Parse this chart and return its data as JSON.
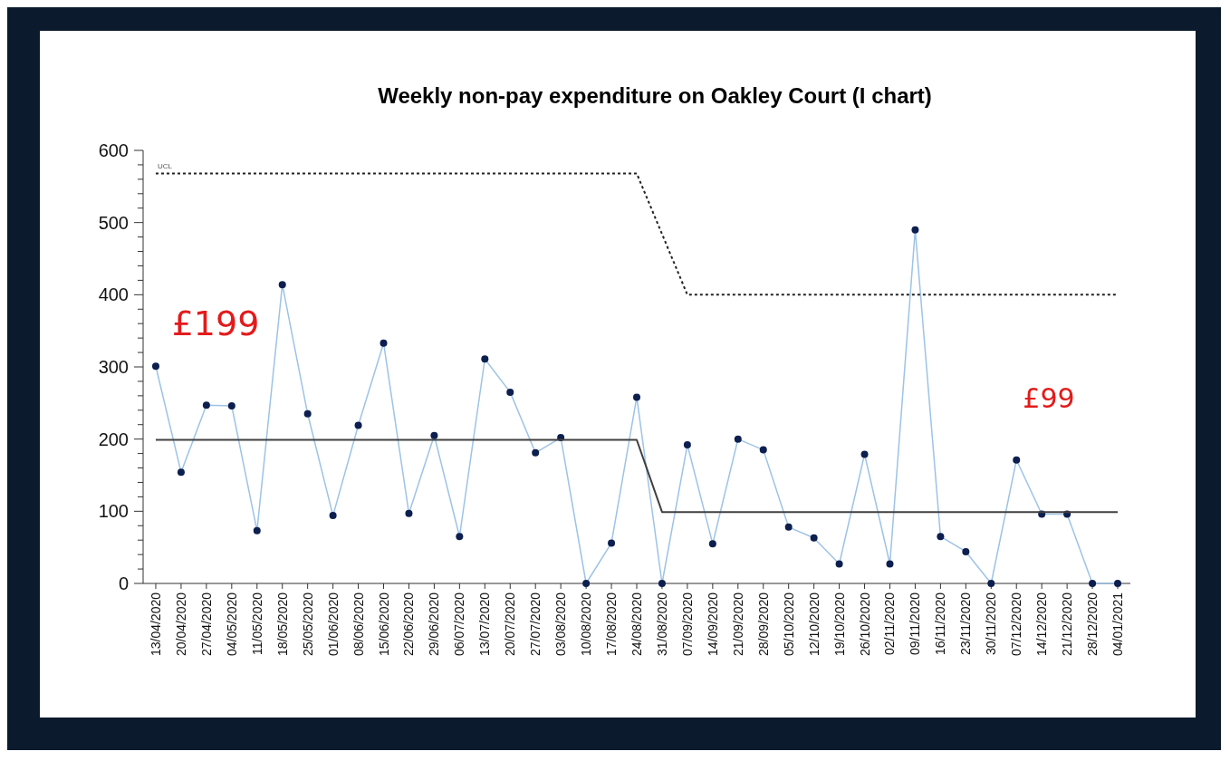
{
  "chart_data": {
    "type": "line",
    "title": "Weekly non-pay expenditure on Oakley Court (I chart)",
    "categories": [
      "13/04/2020",
      "20/04/2020",
      "27/04/2020",
      "04/05/2020",
      "11/05/2020",
      "18/05/2020",
      "25/05/2020",
      "01/06/2020",
      "08/06/2020",
      "15/06/2020",
      "22/06/2020",
      "29/06/2020",
      "06/07/2020",
      "13/07/2020",
      "20/07/2020",
      "27/07/2020",
      "03/08/2020",
      "10/08/2020",
      "17/08/2020",
      "24/08/2020",
      "31/08/2020",
      "07/09/2020",
      "14/09/2020",
      "21/09/2020",
      "28/09/2020",
      "05/10/2020",
      "12/10/2020",
      "19/10/2020",
      "26/10/2020",
      "02/11/2020",
      "09/11/2020",
      "16/11/2020",
      "23/11/2020",
      "30/11/2020",
      "07/12/2020",
      "14/12/2020",
      "21/12/2020",
      "28/12/2020",
      "04/01/2021"
    ],
    "series": [
      {
        "color": "#9dc3e6",
        "colors": [
          "#0d1f4f",
          "#0d1f4f",
          "#0d1f4f",
          "#0d1f4f",
          "#0d1f4f",
          "#0d1f4f",
          "#0d1f4f",
          "#0d1f4f",
          "#0d1f4f",
          "#0d1f4f",
          "#0d1f4f",
          "#0d1f4f",
          "#0d1f4f",
          "#0d1f4f",
          "#0d1f4f",
          "#0d1f4f",
          "#0d1f4f",
          "#0d1f4f",
          "#0d1f4f",
          "#0d1f4f",
          "#0d1f4f",
          "#0d1f4f",
          "#0d1f4f",
          "#0d1f4f",
          "#0d1f4f",
          "#0d1f4f",
          "#0d1f4f",
          "#0d1f4f",
          "#0d1f4f",
          "#0d1f4f",
          "#0d1f4f",
          "#0d1f4f",
          "#0d1f4f",
          "#0d1f4f",
          "#0d1f4f",
          "#0d1f4f",
          "#0d1f4f",
          "#0d1f4f",
          "#0d1f4f"
        ],
        "marker": "circle",
        "line_style": "solid",
        "values": [
          301,
          154,
          247,
          246,
          73,
          414,
          235,
          94,
          219,
          333,
          97,
          205,
          65,
          311,
          265,
          181,
          202,
          0,
          56,
          258,
          0,
          192,
          55,
          200,
          185,
          78,
          63,
          27,
          179,
          27,
          490,
          65,
          44,
          0,
          171,
          96,
          96,
          0,
          0
        ]
      },
      {
        "color": "#404040",
        "marker": "none",
        "line_style": "solid",
        "values": [
          199,
          199,
          199,
          199,
          199,
          199,
          199,
          199,
          199,
          199,
          199,
          199,
          199,
          199,
          199,
          199,
          199,
          199,
          199,
          199,
          99,
          99,
          99,
          99,
          99,
          99,
          99,
          99,
          99,
          99,
          99,
          99,
          99,
          99,
          99,
          99,
          99,
          99,
          99
        ]
      },
      {
        "name": "UCL",
        "color": "#222222",
        "marker": "none",
        "line_style": "dotted",
        "values": [
          568,
          568,
          568,
          568,
          568,
          568,
          568,
          568,
          568,
          568,
          568,
          568,
          568,
          568,
          568,
          568,
          568,
          568,
          568,
          568,
          484,
          400,
          400,
          400,
          400,
          400,
          400,
          400,
          400,
          400,
          400,
          400,
          400,
          400,
          400,
          400,
          400,
          400,
          400
        ]
      }
    ],
    "ylim": [
      0,
      600
    ],
    "yticks": [
      0,
      {
        "value": 20,
        "label": null
      },
      {
        "value": 40,
        "label": null
      },
      {
        "value": 60,
        "label": null
      },
      {
        "value": 80,
        "label": null
      },
      100,
      {
        "value": 120,
        "label": null
      },
      {
        "value": 140,
        "label": null
      },
      {
        "value": 160,
        "label": null
      },
      {
        "value": 180,
        "label": null
      },
      200,
      {
        "value": 220,
        "label": null
      },
      {
        "value": 240,
        "label": null
      },
      {
        "value": 260,
        "label": null
      },
      {
        "value": 280,
        "label": null
      },
      300,
      {
        "value": 320,
        "label": null
      },
      {
        "value": 340,
        "label": null
      },
      {
        "value": 360,
        "label": null
      },
      {
        "value": 380,
        "label": null
      },
      400,
      {
        "value": 420,
        "label": null
      },
      {
        "value": 440,
        "label": null
      },
      {
        "value": 460,
        "label": null
      },
      {
        "value": 480,
        "label": null
      },
      500,
      {
        "value": 520,
        "label": null
      },
      {
        "value": 540,
        "label": null
      },
      {
        "value": 560,
        "label": null
      },
      {
        "value": 580,
        "label": null
      },
      600
    ],
    "annotations": [
      "£199",
      "£99"
    ],
    "grid": false
  }
}
